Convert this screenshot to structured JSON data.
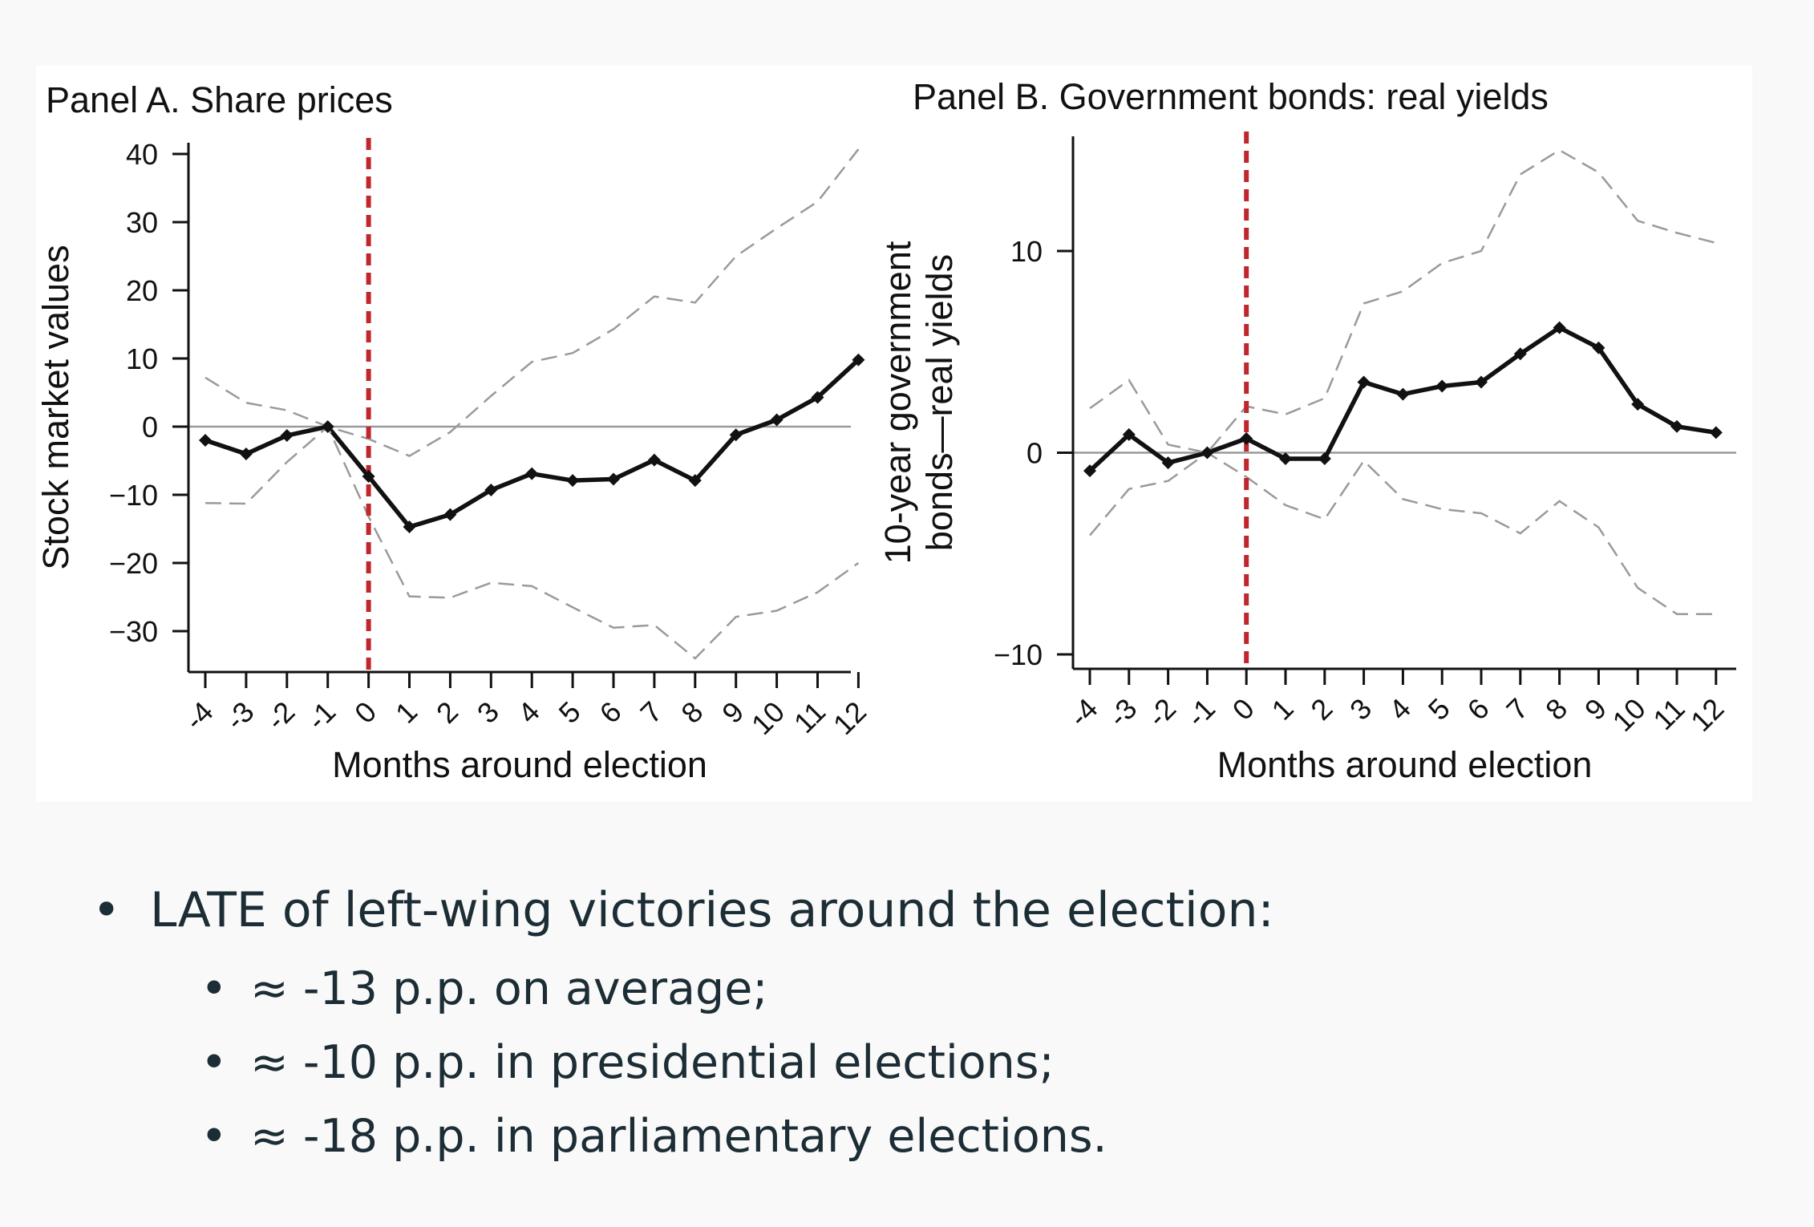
{
  "chart_data": [
    {
      "type": "line",
      "title": "Panel A. Share prices",
      "xlabel": "Months around election",
      "ylabel": "Stock market values",
      "ylim": [
        -36,
        42
      ],
      "yticks": [
        40,
        30,
        20,
        10,
        0,
        -10,
        -20,
        -30
      ],
      "ytick_labels": [
        "40",
        "30",
        "20",
        "10",
        "0",
        "−10",
        "−20",
        "−30"
      ],
      "xlim": [
        -4.5,
        12.5
      ],
      "x": [
        -4,
        -3,
        -2,
        -1,
        0,
        1,
        2,
        3,
        4,
        5,
        6,
        7,
        8,
        9,
        10,
        11,
        12
      ],
      "xtick_labels": [
        "-4",
        "-3",
        "-2",
        "-1",
        "0",
        "1",
        "2",
        "3",
        "4",
        "5",
        "6",
        "7",
        "8",
        "9",
        "10",
        "11",
        "12"
      ],
      "event_x": 0,
      "series": [
        {
          "role": "estimate",
          "values": [
            -2,
            -4,
            -1.3,
            0,
            -7.3,
            -14.7,
            -12.9,
            -9.3,
            -6.9,
            -7.9,
            -7.7,
            -4.9,
            -7.9,
            -1.2,
            1,
            4.3,
            9.8
          ]
        },
        {
          "role": "upper_ci",
          "values": [
            7.2,
            3.5,
            2.4,
            0,
            -1.8,
            -4.3,
            -0.8,
            4.5,
            9.5,
            10.8,
            14.3,
            19.1,
            18.2,
            25,
            29.1,
            33,
            40.7
          ]
        },
        {
          "role": "lower_ci",
          "values": [
            -11.2,
            -11.3,
            -5.2,
            0,
            -13.2,
            -24.9,
            -25.1,
            -22.9,
            -23.4,
            -26.5,
            -29.5,
            -29.1,
            -34,
            -27.9,
            -27,
            -24.3,
            -20
          ]
        }
      ]
    },
    {
      "type": "line",
      "title": "Panel B. Government bonds: real yields",
      "xlabel": "Months around election",
      "ylabel_lines": [
        "10-year government",
        "bonds—real yields"
      ],
      "ylim": [
        -11,
        15.5
      ],
      "yticks": [
        10,
        0,
        -10
      ],
      "ytick_labels": [
        "10",
        "0",
        "−10"
      ],
      "xlim": [
        -4.5,
        12.5
      ],
      "x": [
        -4,
        -3,
        -2,
        -1,
        0,
        1,
        2,
        3,
        4,
        5,
        6,
        7,
        8,
        9,
        10,
        11,
        12
      ],
      "xtick_labels": [
        "-4",
        "-3",
        "-2",
        "-1",
        "0",
        "1",
        "2",
        "3",
        "4",
        "5",
        "6",
        "7",
        "8",
        "9",
        "10",
        "11",
        "12"
      ],
      "event_x": 0,
      "series": [
        {
          "role": "estimate",
          "values": [
            -0.9,
            0.9,
            -0.5,
            0,
            0.7,
            -0.3,
            -0.3,
            3.5,
            2.9,
            3.3,
            3.5,
            4.9,
            6.2,
            5.2,
            2.4,
            1.3,
            1
          ]
        },
        {
          "role": "upper_ci",
          "values": [
            2.2,
            3.6,
            0.4,
            0,
            2.3,
            1.9,
            2.7,
            7.4,
            8,
            9.4,
            10,
            13.8,
            15,
            13.9,
            11.5,
            10.9,
            10.4
          ]
        },
        {
          "role": "lower_ci",
          "values": [
            -4.1,
            -1.8,
            -1.4,
            0,
            -1.2,
            -2.6,
            -3.3,
            -0.4,
            -2.3,
            -2.8,
            -3,
            -4,
            -2.4,
            -3.7,
            -6.7,
            -8,
            -8
          ]
        }
      ]
    }
  ],
  "bullets": {
    "main": "LATE of left-wing victories around the election:",
    "subs": [
      "≈ -13 p.p. on average;",
      "≈ -10 p.p. in presidential elections;",
      "≈ -18 p.p. in parliamentary elections."
    ]
  },
  "colors": {
    "estimate": "#111111",
    "ci": "#9a9a9a",
    "election_marker": "#c0262d",
    "zero_line": "#999999",
    "bullet_text": "#1c2d35"
  }
}
